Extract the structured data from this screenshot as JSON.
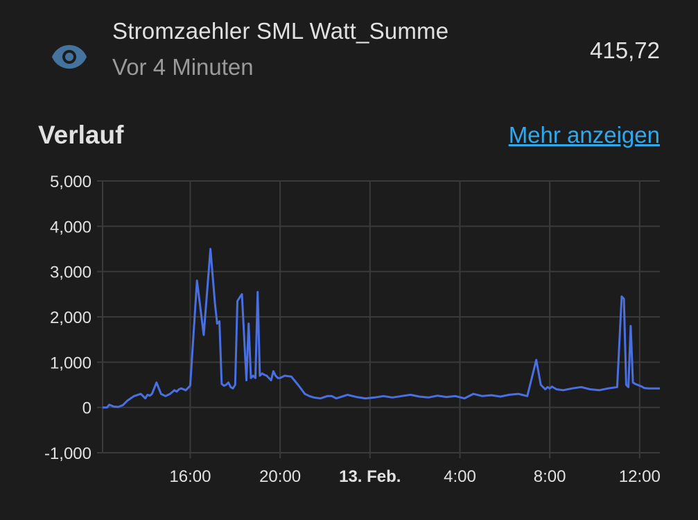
{
  "entity": {
    "icon": "eye-icon",
    "name": "Stromzaehler SML Watt_Summe",
    "last_changed": "Vor 4 Minuten",
    "state": "415,72"
  },
  "history": {
    "title": "Verlauf",
    "more_link": "Mehr anzeigen"
  },
  "colors": {
    "background": "#1c1c1c",
    "accent_icon": "#44739e",
    "line": "#4a6fe0",
    "link": "#2fa8ee",
    "grid": "#3a3a3a"
  },
  "chart_data": {
    "type": "line",
    "grid": true,
    "ylim": [
      -1000,
      5000
    ],
    "xlim_hours": [
      12.1,
      36.9
    ],
    "y_ticks": [
      {
        "value": 5000,
        "label": "5,000"
      },
      {
        "value": 4000,
        "label": "4,000"
      },
      {
        "value": 3000,
        "label": "3,000"
      },
      {
        "value": 2000,
        "label": "2,000"
      },
      {
        "value": 1000,
        "label": "1,000"
      },
      {
        "value": 0,
        "label": "0"
      },
      {
        "value": -1000,
        "label": "-1,000"
      }
    ],
    "x_ticks": [
      {
        "value": 16,
        "label": "16:00",
        "bold": false
      },
      {
        "value": 20,
        "label": "20:00",
        "bold": false
      },
      {
        "value": 24,
        "label": "13. Feb.",
        "bold": true
      },
      {
        "value": 28,
        "label": "4:00",
        "bold": false
      },
      {
        "value": 32,
        "label": "8:00",
        "bold": false
      },
      {
        "value": 36,
        "label": "12:00",
        "bold": false
      }
    ],
    "series": [
      {
        "x": [
          12.1,
          12.3,
          12.4,
          12.6,
          12.8,
          13.0,
          13.2,
          13.5,
          13.8,
          13.9,
          14.0,
          14.1,
          14.2,
          14.3,
          14.5,
          14.7,
          14.9,
          15.1,
          15.3,
          15.4,
          15.5,
          15.6,
          15.8,
          16.0,
          16.3,
          16.6,
          16.9,
          17.1,
          17.2,
          17.3,
          17.4,
          17.5,
          17.6,
          17.7,
          17.8,
          17.9,
          18.0,
          18.1,
          18.3,
          18.5,
          18.6,
          18.7,
          18.8,
          18.9,
          19.0,
          19.1,
          19.2,
          19.3,
          19.4,
          19.6,
          19.7,
          19.8,
          19.9,
          20.0,
          20.2,
          20.5,
          20.8,
          21.1,
          21.3,
          21.5,
          21.8,
          22.1,
          22.3,
          22.5,
          22.7,
          23.0,
          23.4,
          23.8,
          24.2,
          24.6,
          25.0,
          25.4,
          25.8,
          26.2,
          26.6,
          27.0,
          27.4,
          27.8,
          28.2,
          28.6,
          29.0,
          29.4,
          29.8,
          30.2,
          30.6,
          31.0,
          31.4,
          31.6,
          31.8,
          31.9,
          32.0,
          32.1,
          32.3,
          32.6,
          33.0,
          33.4,
          33.8,
          34.2,
          34.6,
          35.0,
          35.2,
          35.3,
          35.4,
          35.5,
          35.6,
          35.7,
          35.8,
          35.9,
          36.0,
          36.1,
          36.2,
          36.4,
          36.6,
          36.9
        ],
        "y": [
          0,
          0,
          60,
          20,
          10,
          50,
          150,
          250,
          300,
          250,
          200,
          280,
          260,
          300,
          550,
          300,
          250,
          300,
          380,
          350,
          400,
          420,
          380,
          480,
          2800,
          1600,
          3500,
          2300,
          1850,
          1900,
          520,
          480,
          500,
          550,
          450,
          420,
          500,
          2350,
          2500,
          600,
          1850,
          650,
          700,
          650,
          2550,
          700,
          750,
          720,
          700,
          600,
          800,
          700,
          650,
          650,
          700,
          680,
          500,
          300,
          250,
          220,
          200,
          250,
          250,
          200,
          230,
          280,
          230,
          200,
          220,
          250,
          220,
          250,
          280,
          240,
          220,
          260,
          230,
          250,
          200,
          300,
          250,
          270,
          240,
          280,
          300,
          250,
          1050,
          500,
          400,
          450,
          420,
          460,
          400,
          380,
          420,
          450,
          400,
          380,
          420,
          450,
          2450,
          2400,
          500,
          450,
          1800,
          550,
          520,
          500,
          480,
          460,
          430,
          420,
          420,
          420
        ]
      }
    ]
  }
}
